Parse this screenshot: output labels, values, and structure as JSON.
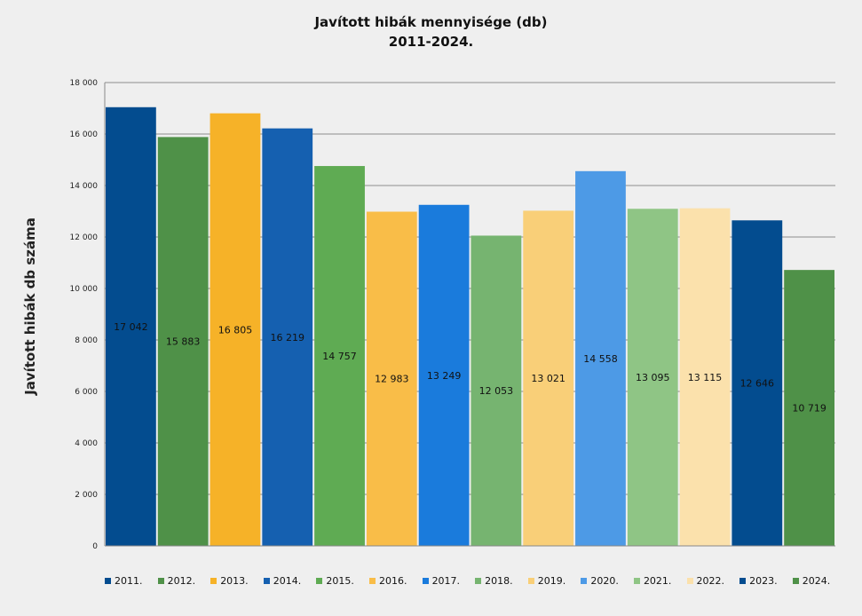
{
  "chart_data": {
    "type": "bar",
    "title": [
      "Javított hibák mennyisége (db)",
      "2011-2024."
    ],
    "ylabel": "Javított hibák db száma",
    "xlabel": "",
    "ylim": [
      0,
      18000
    ],
    "yticks": [
      0,
      2000,
      4000,
      6000,
      8000,
      10000,
      12000,
      14000,
      16000,
      18000
    ],
    "ytick_labels": [
      "0",
      "2 000",
      "4 000",
      "6 000",
      "8 000",
      "10 000",
      "12 000",
      "14 000",
      "16 000",
      "18 000"
    ],
    "grid": true,
    "legend_position": "bottom",
    "categories": [
      "2011.",
      "2012.",
      "2013.",
      "2014.",
      "2015.",
      "2016.",
      "2017.",
      "2018.",
      "2019.",
      "2020.",
      "2021.",
      "2022.",
      "2023.",
      "2024."
    ],
    "values": [
      17042,
      15883,
      16805,
      16219,
      14757,
      12983,
      13249,
      12053,
      13021,
      14558,
      13095,
      13115,
      12646,
      10719
    ],
    "value_labels": [
      "17 042",
      "15 883",
      "16 805",
      "16 219",
      "14 757",
      "12 983",
      "13 249",
      "12 053",
      "13 021",
      "14 558",
      "13 095",
      "13 115",
      "12 646",
      "10 719"
    ],
    "colors": [
      "#034c8f",
      "#4f9148",
      "#f6b228",
      "#1560b0",
      "#5fab53",
      "#f9bd48",
      "#1a7bdc",
      "#76b470",
      "#f9cf78",
      "#4d9ae6",
      "#8fc585",
      "#fbe1ac",
      "#034c8f",
      "#4f9148"
    ]
  }
}
